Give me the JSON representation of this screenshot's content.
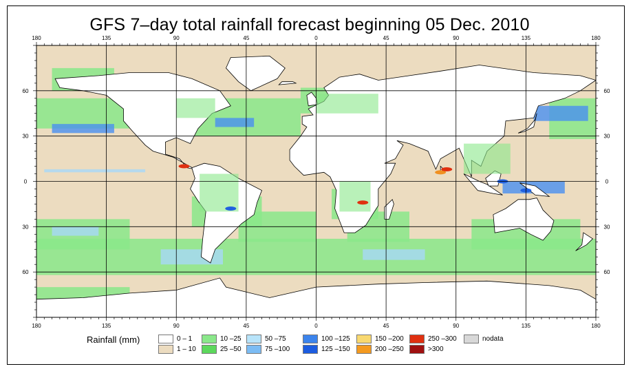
{
  "title": "GFS 7–day total rainfall forecast beginning 05 Dec. 2010",
  "map": {
    "top_lon_labels": [
      "180",
      "135",
      "90",
      "45",
      "0",
      "45",
      "90",
      "135",
      "180"
    ],
    "bottom_lon_labels": [
      "180",
      "135",
      "90",
      "45",
      "0",
      "45",
      "90",
      "135",
      "180"
    ],
    "left_lat_labels": [
      "60",
      "30",
      "0",
      "30",
      "60"
    ],
    "right_lat_labels": [
      "60",
      "30",
      "0",
      "30",
      "60"
    ],
    "colors": {
      "ocean_light": "#ecdcc0",
      "green": "#8ae88a",
      "green_dark": "#5cd85c",
      "blue_light": "#a8d8f8",
      "blue": "#4a90f0",
      "blue_dark": "#2060e0",
      "orange": "#f09020",
      "red": "#e03010",
      "land": "#ffffff",
      "outline": "#000000"
    }
  },
  "legend": {
    "label": "Rainfall (mm)",
    "items": [
      {
        "label": "0 – 1",
        "color": "#ffffff"
      },
      {
        "label": "1 – 10",
        "color": "#ecdcc0"
      },
      {
        "label": "10 –25",
        "color": "#8ae88a"
      },
      {
        "label": "25 –50",
        "color": "#5cd85c"
      },
      {
        "label": "50 –75",
        "color": "#b8e4fa"
      },
      {
        "label": "75 –100",
        "color": "#7cbcf4"
      },
      {
        "label": "100 –125",
        "color": "#3c84ec"
      },
      {
        "label": "125 –150",
        "color": "#1c5ce0"
      },
      {
        "label": "150 –200",
        "color": "#f8d870"
      },
      {
        "label": "200 –250",
        "color": "#f49a20"
      },
      {
        "label": "250 –300",
        "color": "#e03010"
      },
      {
        "label": ">300",
        "color": "#a01010"
      },
      {
        "label": "nodata",
        "color": "#d8d8d8"
      }
    ]
  }
}
